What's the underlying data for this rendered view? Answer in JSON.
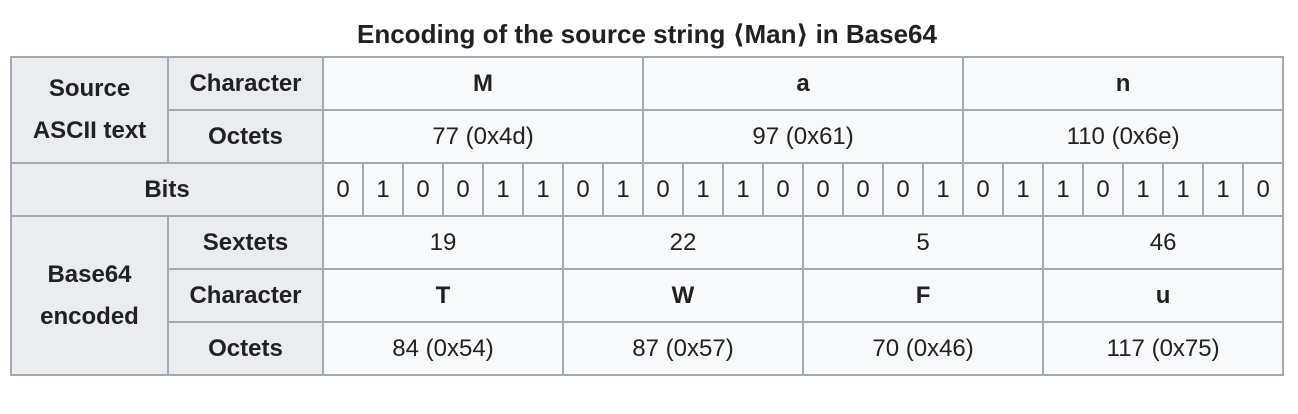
{
  "caption": "Encoding of the source string ⟨Man⟩ in Base64",
  "source": {
    "group_label": "Source\nASCII text",
    "character_label": "Character",
    "octets_label": "Octets",
    "characters": [
      "M",
      "a",
      "n"
    ],
    "octets": [
      "77 (0x4d)",
      "97 (0x61)",
      "110 (0x6e)"
    ]
  },
  "bits": {
    "label": "Bits",
    "values": [
      "0",
      "1",
      "0",
      "0",
      "1",
      "1",
      "0",
      "1",
      "0",
      "1",
      "1",
      "0",
      "0",
      "0",
      "0",
      "1",
      "0",
      "1",
      "1",
      "0",
      "1",
      "1",
      "1",
      "0"
    ]
  },
  "encoded": {
    "group_label": "Base64\nencoded",
    "sextets_label": "Sextets",
    "character_label": "Character",
    "octets_label": "Octets",
    "sextets": [
      "19",
      "22",
      "5",
      "46"
    ],
    "characters": [
      "T",
      "W",
      "F",
      "u"
    ],
    "octets": [
      "84 (0x54)",
      "87 (0x57)",
      "70 (0x46)",
      "117 (0x75)"
    ]
  }
}
